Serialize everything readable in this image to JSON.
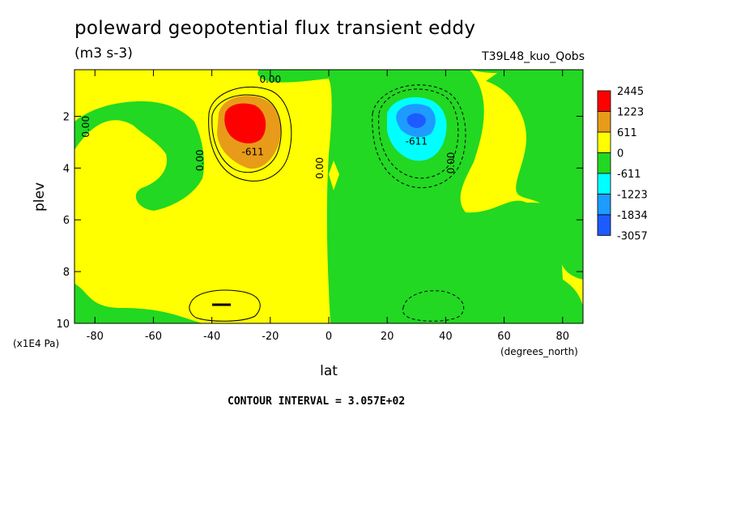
{
  "title": "poleward geopotential flux transient eddy",
  "units": "(m3 s-3)",
  "run_name": "T39L48_kuo_Qobs",
  "contour_note": "CONTOUR INTERVAL = 3.057E+02",
  "colors": {
    "red": "#ff0000",
    "orange": "#e89b19",
    "yellow": "#ffff00",
    "green": "#22d822",
    "cyan": "#00ffff",
    "mid_blue": "#1e9bff",
    "blue": "#1d5bff"
  },
  "chart_data": {
    "type": "heatmap",
    "title": "poleward geopotential flux transient eddy",
    "xlabel": "lat",
    "xunits": "(degrees_north)",
    "ylabel": "plev",
    "yunits": "(x1E4 Pa)",
    "xlim": [
      -87,
      87
    ],
    "ylim": [
      10,
      0.2
    ],
    "x_ticks": [
      -80,
      -60,
      -40,
      -20,
      0,
      20,
      40,
      60,
      80
    ],
    "x_tick_labels": [
      "-80",
      "-60",
      "-40",
      "-20",
      "0",
      "20",
      "40",
      "60",
      "80"
    ],
    "y_ticks": [
      2,
      4,
      6,
      8,
      10
    ],
    "y_tick_labels": [
      "2",
      "4",
      "6",
      "8",
      "10"
    ],
    "legend": {
      "position": "right",
      "levels": [
        "2445",
        "1223",
        "611",
        "0",
        "-611",
        "-1223",
        "-1834",
        "-3057"
      ],
      "colors": [
        "#ff0000",
        "#e89b19",
        "#ffff00",
        "#22d822",
        "#00ffff",
        "#1e9bff",
        "#1d5bff"
      ]
    },
    "contour_labels": [
      {
        "text": "0.00",
        "lat": -82,
        "plev": 2.4
      },
      {
        "text": "0.00",
        "lat": -43,
        "plev": 3.7
      },
      {
        "text": "-611",
        "lat": -26,
        "plev": 3.5
      },
      {
        "text": "0.00",
        "lat": -20,
        "plev": 0.7
      },
      {
        "text": "0.00",
        "lat": -2,
        "plev": 4.0
      },
      {
        "text": "-611",
        "lat": 30,
        "plev": 3.1
      },
      {
        "text": "0.00",
        "lat": 43,
        "plev": 3.8
      }
    ],
    "extrema": [
      {
        "sign": "positive",
        "lat": -30,
        "plev": 2.0
      },
      {
        "sign": "negative",
        "lat": 30,
        "plev": 2.0
      }
    ]
  }
}
